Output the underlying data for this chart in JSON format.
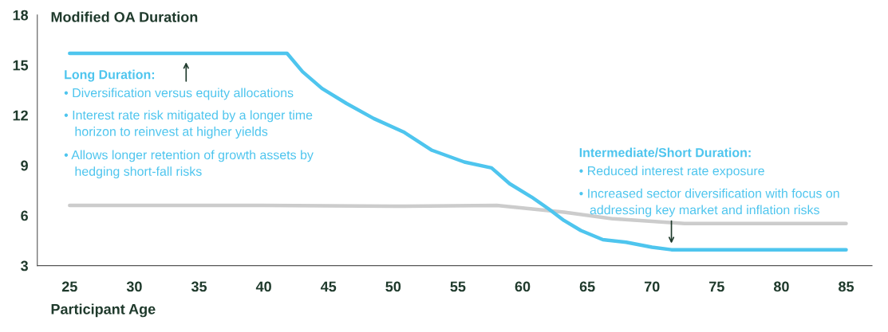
{
  "chart_data": {
    "type": "line",
    "ylabel": "Modified OA Duration",
    "xlabel": "Participant Age",
    "xlim": [
      22.5,
      87
    ],
    "xticks": [
      25,
      30,
      35,
      40,
      45,
      50,
      55,
      60,
      65,
      70,
      75,
      80,
      85
    ],
    "ylim": [
      3,
      18
    ],
    "yticks": [
      3,
      6,
      9,
      12,
      15,
      18
    ],
    "grid": false,
    "legend": false,
    "marker": "none",
    "line_style": "solid",
    "series": [
      {
        "color": "#cccccc",
        "x": [
          25,
          40,
          50,
          58,
          60,
          63.2,
          67,
          70,
          72.5,
          75,
          85
        ],
        "values": [
          6.6,
          6.6,
          6.55,
          6.6,
          6.45,
          6.2,
          5.8,
          5.65,
          5.52,
          5.52,
          5.52
        ]
      },
      {
        "color": "#4ec5ee",
        "x": [
          25,
          41.8,
          43,
          44.5,
          46.4,
          48.5,
          50.8,
          53,
          55.5,
          57.6,
          59,
          60.7,
          62,
          63.2,
          64.5,
          66.2,
          68,
          70,
          71.5,
          75,
          85
        ],
        "values": [
          15.7,
          15.7,
          14.6,
          13.6,
          12.7,
          11.8,
          11.0,
          9.9,
          9.2,
          8.85,
          7.9,
          7.1,
          6.4,
          5.7,
          5.1,
          4.55,
          4.4,
          4.1,
          3.95,
          3.95,
          3.95
        ]
      }
    ],
    "annotations": [
      "Long Duration:",
      "• Diversification versus equity allocations",
      "• Interest rate risk mitigated by a longer time\n   horizon to reinvest at higher yields",
      "• Allows longer retention of growth assets by\n   hedging short-fall risks",
      "Intermediate/Short Duration:",
      "• Reduced interest rate exposure",
      "• Increased sector diversification with focus on\n   addressing key market and inflation risks"
    ]
  }
}
